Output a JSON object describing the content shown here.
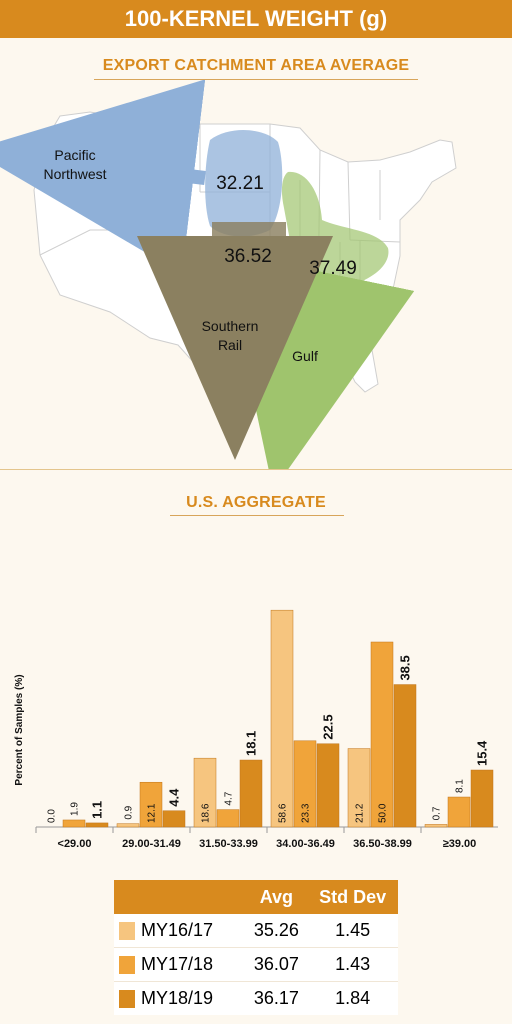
{
  "header": {
    "title": "100-KERNEL WEIGHT (g)"
  },
  "map": {
    "title": "EXPORT CATCHMENT AREA AVERAGE",
    "regions": [
      {
        "id": "pnw",
        "value": "32.21",
        "label_line1": "Pacific",
        "label_line2": "Northwest",
        "color": "#8fb0d8"
      },
      {
        "id": "southern-rail",
        "value": "36.52",
        "label_line1": "Southern",
        "label_line2": "Rail",
        "color": "#8b8060"
      },
      {
        "id": "gulf",
        "value": "37.49",
        "label_line1": "Gulf",
        "label_line2": "",
        "color": "#9fc46d"
      }
    ]
  },
  "aggregate": {
    "title": "U.S. AGGREGATE"
  },
  "chart_data": {
    "type": "bar",
    "ylabel": "Percent of Samples (%)",
    "ylim": [
      0,
      60
    ],
    "categories": [
      "<29.00",
      "29.00-31.49",
      "31.50-33.99",
      "34.00-36.49",
      "36.50-38.99",
      "≥39.00"
    ],
    "series": [
      {
        "name": "MY16/17",
        "color": "#f6c57f",
        "values": [
          0.0,
          0.9,
          18.6,
          58.6,
          21.2,
          0.7
        ],
        "labels": [
          "0.0",
          "0.9",
          "18.6",
          "58.6",
          "21.2",
          "0.7"
        ]
      },
      {
        "name": "MY17/18",
        "color": "#f0a43a",
        "values": [
          1.9,
          12.1,
          4.7,
          23.3,
          50.0,
          8.1
        ],
        "labels": [
          "1.9",
          "12.1",
          "4.7",
          "23.3",
          "50.0",
          "8.1"
        ]
      },
      {
        "name": "MY18/19",
        "color": "#d88a1e",
        "values": [
          1.1,
          4.4,
          18.1,
          22.5,
          38.5,
          15.4
        ],
        "labels": [
          "1.1",
          "4.4",
          "18.1",
          "22.5",
          "38.5",
          "15.4"
        ]
      }
    ],
    "legend_placement": "bottom"
  },
  "table": {
    "headers": [
      "",
      "Avg",
      "Std Dev"
    ],
    "rows": [
      {
        "label": "MY16/17",
        "avg": "35.26",
        "std": "1.45",
        "color": "#f6c57f"
      },
      {
        "label": "MY17/18",
        "avg": "36.07",
        "std": "1.43",
        "color": "#f0a43a"
      },
      {
        "label": "MY18/19",
        "avg": "36.17",
        "std": "1.84",
        "color": "#d88a1e"
      }
    ]
  }
}
